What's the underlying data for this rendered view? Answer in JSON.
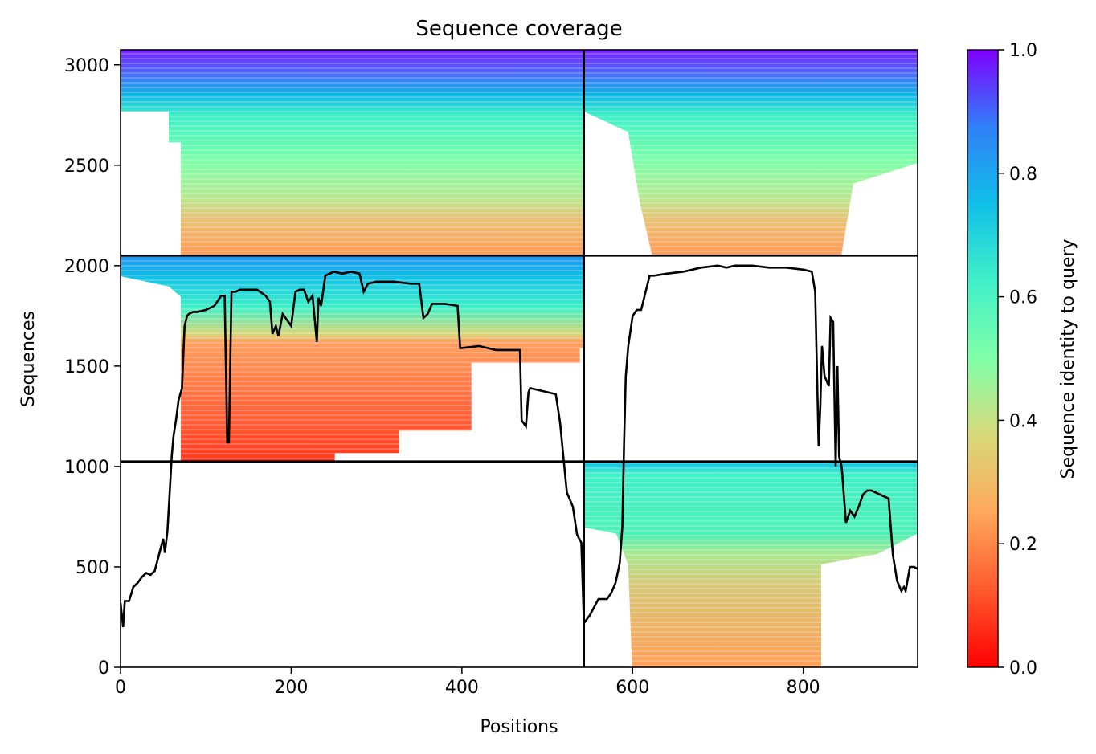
{
  "chart_data": {
    "type": "heatmap",
    "title": "Sequence coverage",
    "xlabel": "Positions",
    "ylabel": "Sequences",
    "colorbar_label": "Sequence identity to query",
    "colormap": "rainbow_r",
    "xlim": [
      0,
      934
    ],
    "ylim": [
      0,
      3075
    ],
    "xticks": [
      0,
      200,
      400,
      600,
      800
    ],
    "yticks": [
      0,
      500,
      1000,
      1500,
      2000,
      2500,
      3000
    ],
    "colorbar_ticks": [
      0.0,
      0.2,
      0.4,
      0.6,
      0.8,
      1.0
    ],
    "colorbar_tick_labels": [
      "0.0",
      "0.2",
      "0.4",
      "0.6",
      "0.8",
      "1.0"
    ],
    "grid": false,
    "chain_boundaries": {
      "x": [
        543
      ],
      "y": [
        1025,
        2050
      ]
    },
    "blocks": [
      {
        "x": [
          0,
          543
        ],
        "y": [
          2050,
          3075
        ],
        "region": "chain 1 (top)"
      },
      {
        "x": [
          543,
          934
        ],
        "y": [
          2050,
          3075
        ],
        "region": "chain 1 x chain 2"
      },
      {
        "x": [
          0,
          543
        ],
        "y": [
          1025,
          2050
        ],
        "region": "chain 2 x chain 1"
      },
      {
        "x": [
          543,
          934
        ],
        "y": [
          1025,
          2050
        ],
        "region": "empty"
      },
      {
        "x": [
          0,
          543
        ],
        "y": [
          0,
          1025
        ],
        "region": "empty"
      },
      {
        "x": [
          543,
          934
        ],
        "y": [
          0,
          1025
        ],
        "region": "chain 2"
      }
    ],
    "coverage_line": {
      "x": [
        0,
        3,
        5,
        10,
        15,
        20,
        25,
        30,
        35,
        40,
        45,
        50,
        52,
        55,
        58,
        60,
        62,
        65,
        68,
        72,
        75,
        78,
        80,
        85,
        90,
        100,
        110,
        118,
        122,
        125,
        127,
        130,
        135,
        140,
        150,
        160,
        170,
        175,
        178,
        182,
        185,
        190,
        200,
        205,
        210,
        215,
        220,
        225,
        230,
        232,
        235,
        240,
        245,
        250,
        260,
        270,
        280,
        285,
        290,
        300,
        320,
        340,
        350,
        355,
        360,
        365,
        380,
        395,
        398,
        400,
        420,
        440,
        460,
        468,
        470,
        475,
        478,
        480,
        490,
        500,
        510,
        515,
        520,
        523,
        530,
        535,
        540,
        543,
        550,
        560,
        570,
        575,
        580,
        585,
        588,
        590,
        592,
        595,
        600,
        605,
        610,
        620,
        625,
        640,
        660,
        680,
        700,
        710,
        720,
        740,
        760,
        780,
        800,
        810,
        814,
        816,
        818,
        820,
        822,
        825,
        828,
        830,
        832,
        835,
        838,
        840,
        842,
        845,
        850,
        855,
        860,
        865,
        870,
        875,
        880,
        890,
        900,
        905,
        910,
        915,
        918,
        920,
        925,
        930,
        934
      ],
      "y": [
        320,
        200,
        330,
        330,
        400,
        420,
        450,
        470,
        460,
        480,
        560,
        640,
        570,
        680,
        900,
        1050,
        1150,
        1230,
        1330,
        1390,
        1700,
        1750,
        1760,
        1770,
        1770,
        1780,
        1800,
        1850,
        1850,
        1120,
        1120,
        1870,
        1870,
        1880,
        1880,
        1880,
        1850,
        1820,
        1660,
        1700,
        1650,
        1760,
        1700,
        1870,
        1880,
        1880,
        1820,
        1850,
        1620,
        1840,
        1800,
        1950,
        1960,
        1970,
        1960,
        1970,
        1960,
        1870,
        1910,
        1920,
        1920,
        1910,
        1910,
        1740,
        1760,
        1810,
        1810,
        1800,
        1590,
        1590,
        1600,
        1580,
        1580,
        1580,
        1230,
        1200,
        1370,
        1390,
        1380,
        1370,
        1360,
        1220,
        1000,
        870,
        800,
        660,
        620,
        220,
        260,
        340,
        340,
        370,
        420,
        520,
        700,
        1100,
        1450,
        1600,
        1750,
        1780,
        1780,
        1950,
        1950,
        1960,
        1970,
        1990,
        2000,
        1990,
        2000,
        2000,
        1990,
        1990,
        1980,
        1970,
        1870,
        1480,
        1100,
        1300,
        1600,
        1450,
        1420,
        1400,
        1740,
        1720,
        1000,
        1500,
        1050,
        1000,
        720,
        780,
        750,
        800,
        860,
        880,
        880,
        860,
        840,
        560,
        430,
        380,
        400,
        380,
        500,
        500,
        490
      ]
    }
  }
}
